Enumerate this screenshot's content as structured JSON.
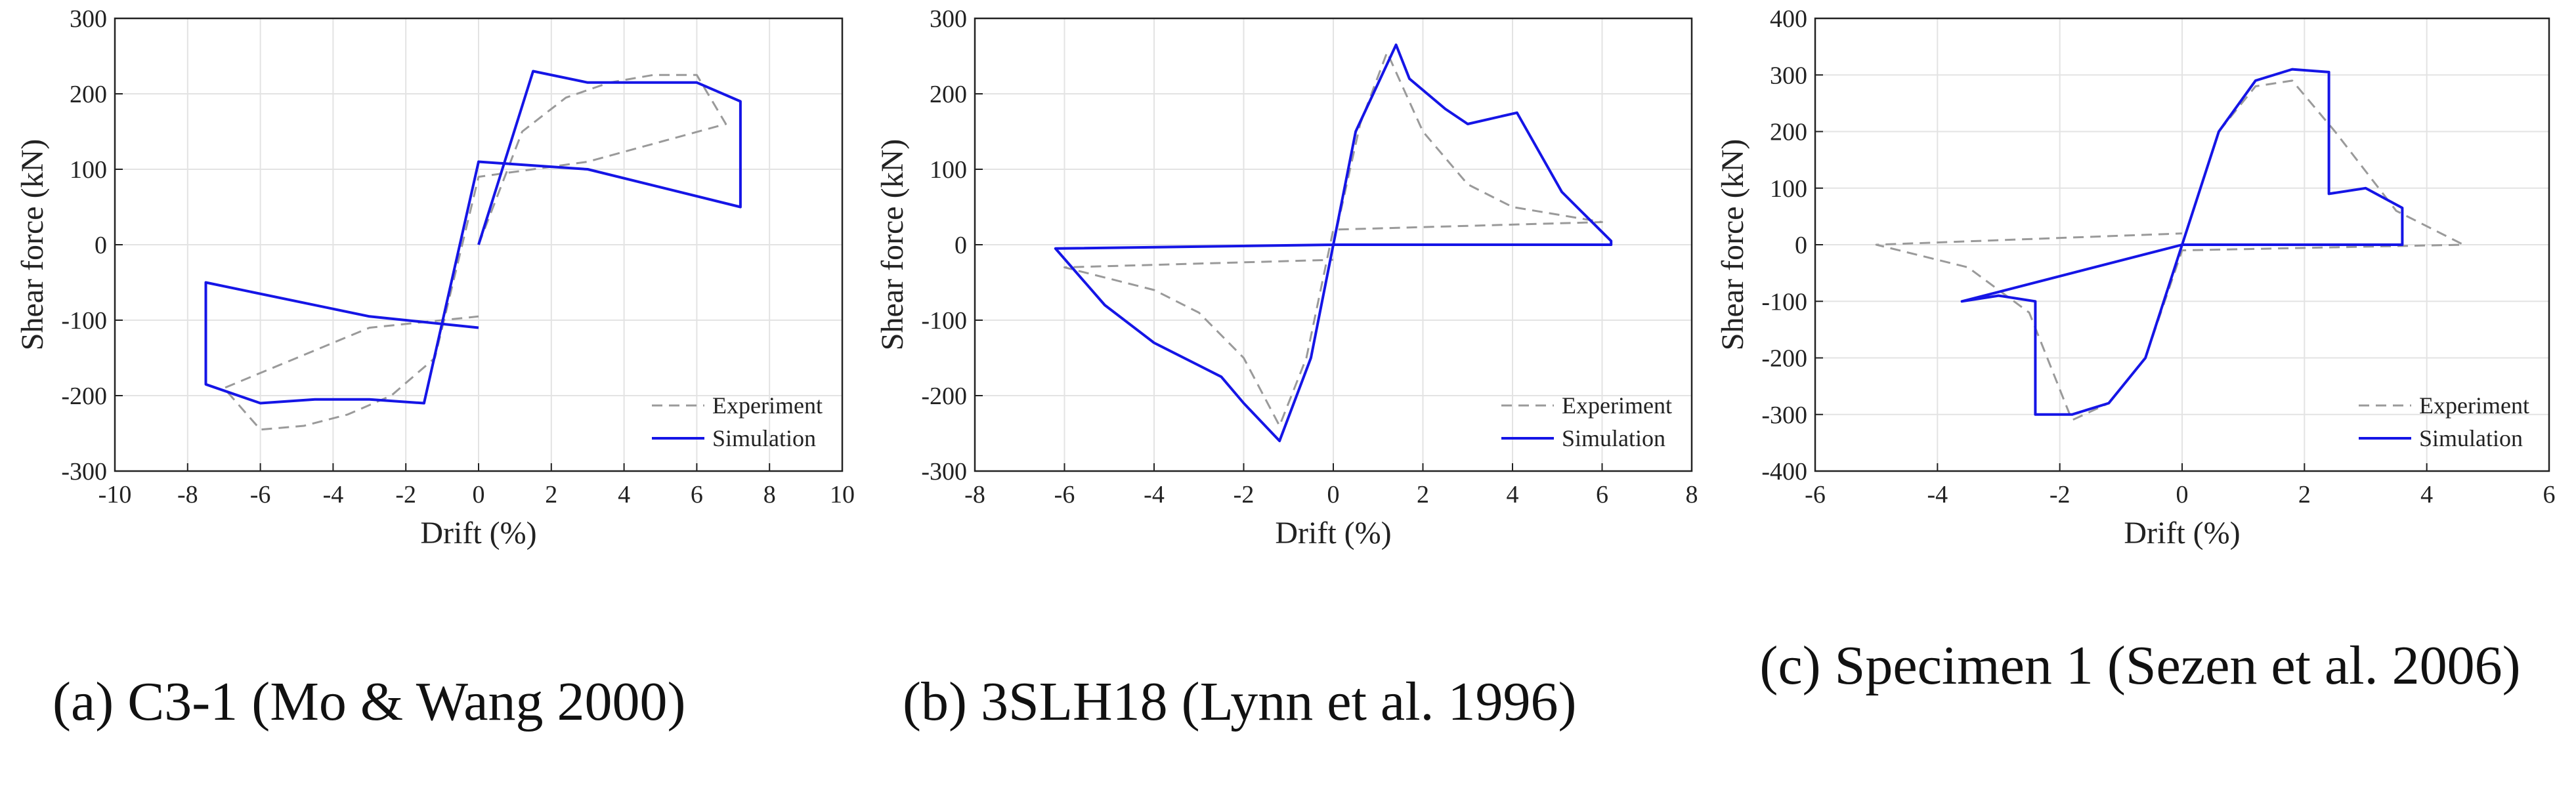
{
  "colors": {
    "simulation": "#1515e6",
    "experiment": "#9a9a9a",
    "grid": "#e3e3e3",
    "axis": "#222222"
  },
  "captions": [
    "(a)    C3-1 (Mo & Wang 2000)",
    "(b) 3SLH18 (Lynn et al. 1996)",
    "(c)    Specimen 1 (Sezen et al. 2006)"
  ],
  "chart_data": [
    {
      "type": "line",
      "caption": "(a)    C3-1 (Mo & Wang 2000)",
      "xlabel": "Drift (%)",
      "ylabel": "Shear force (kN)",
      "xlim": [
        -10,
        10
      ],
      "ylim": [
        -300,
        300
      ],
      "xticks": [
        -10,
        -8,
        -6,
        -4,
        -2,
        0,
        2,
        4,
        6,
        8,
        10
      ],
      "yticks": [
        -300,
        -200,
        -100,
        0,
        100,
        200,
        300
      ],
      "grid": true,
      "legend_position": "bottom-right",
      "series": [
        {
          "name": "Experiment",
          "style": "dashed",
          "color": "#9a9a9a",
          "x": [
            0,
            1.2,
            2.4,
            3.6,
            4.8,
            6.0,
            6.8,
            3.0,
            0,
            -1.2,
            -2.4,
            -3.6,
            -4.8,
            -6.0,
            -7.0,
            -3.0,
            0
          ],
          "y": [
            0,
            150,
            195,
            215,
            225,
            225,
            160,
            110,
            90,
            -150,
            -200,
            -225,
            -240,
            -245,
            -190,
            -110,
            -95
          ]
        },
        {
          "name": "Simulation",
          "style": "solid",
          "color": "#1515e6",
          "x": [
            0,
            1.5,
            3.0,
            4.5,
            6.0,
            7.2,
            7.2,
            3.0,
            0,
            -1.5,
            -3.0,
            -4.5,
            -6.0,
            -7.5,
            -7.5,
            -3.0,
            0
          ],
          "y": [
            0,
            230,
            215,
            215,
            215,
            190,
            50,
            100,
            110,
            -210,
            -205,
            -205,
            -210,
            -185,
            -50,
            -95,
            -110
          ]
        }
      ]
    },
    {
      "type": "line",
      "caption": "(b) 3SLH18 (Lynn et al. 1996)",
      "xlabel": "Drift (%)",
      "ylabel": "Shear force (kN)",
      "xlim": [
        -8,
        8
      ],
      "ylim": [
        -300,
        300
      ],
      "xticks": [
        -8,
        -6,
        -4,
        -2,
        0,
        2,
        4,
        6,
        8
      ],
      "yticks": [
        -300,
        -200,
        -100,
        0,
        100,
        200,
        300
      ],
      "grid": true,
      "legend_position": "bottom-right",
      "series": [
        {
          "name": "Experiment",
          "style": "dashed",
          "color": "#9a9a9a",
          "x": [
            0,
            0.6,
            1.2,
            2.0,
            3.0,
            4.0,
            5.0,
            6.0,
            0,
            -0.6,
            -1.2,
            -2.0,
            -3.0,
            -4.0,
            -5.0,
            -6.0,
            0
          ],
          "y": [
            0,
            160,
            255,
            150,
            80,
            50,
            40,
            30,
            20,
            -150,
            -240,
            -150,
            -90,
            -60,
            -45,
            -30,
            -20
          ]
        },
        {
          "name": "Simulation",
          "style": "solid",
          "color": "#1515e6",
          "x": [
            0,
            0.5,
            1.4,
            1.7,
            2.5,
            3.0,
            4.1,
            5.1,
            6.2,
            6.2,
            0,
            -0.5,
            -1.2,
            -2.0,
            -2.5,
            -3.0,
            -4.0,
            -5.1,
            -6.2,
            0
          ],
          "y": [
            0,
            150,
            265,
            220,
            180,
            160,
            175,
            70,
            5,
            0,
            0,
            -150,
            -260,
            -210,
            -175,
            -160,
            -130,
            -80,
            -5,
            0
          ]
        }
      ]
    },
    {
      "type": "line",
      "caption": "(c)    Specimen 1 (Sezen et al. 2006)",
      "xlabel": "Drift (%)",
      "ylabel": "Shear force (kN)",
      "xlim": [
        -6,
        6
      ],
      "ylim": [
        -400,
        400
      ],
      "xticks": [
        -6,
        -4,
        -2,
        0,
        2,
        4,
        6
      ],
      "yticks": [
        -400,
        -300,
        -200,
        -100,
        0,
        100,
        200,
        300,
        400
      ],
      "grid": true,
      "legend_position": "bottom-right",
      "series": [
        {
          "name": "Experiment",
          "style": "dashed",
          "color": "#9a9a9a",
          "x": [
            0,
            0.6,
            1.2,
            1.8,
            2.5,
            3.5,
            4.6,
            0,
            -0.6,
            -1.2,
            -1.8,
            -2.5,
            -3.5,
            -5.0,
            0
          ],
          "y": [
            0,
            200,
            280,
            290,
            200,
            60,
            0,
            -10,
            -200,
            -280,
            -310,
            -120,
            -40,
            0,
            20
          ]
        },
        {
          "name": "Simulation",
          "style": "solid",
          "color": "#1515e6",
          "x": [
            0,
            0.6,
            1.2,
            1.8,
            2.4,
            2.4,
            3.0,
            3.6,
            3.6,
            0,
            -0.6,
            -1.2,
            -1.8,
            -2.4,
            -2.4,
            -3.0,
            -3.6,
            0
          ],
          "y": [
            0,
            200,
            290,
            310,
            305,
            90,
            100,
            65,
            0,
            0,
            -200,
            -280,
            -300,
            -300,
            -100,
            -90,
            -100,
            0
          ]
        }
      ]
    }
  ]
}
